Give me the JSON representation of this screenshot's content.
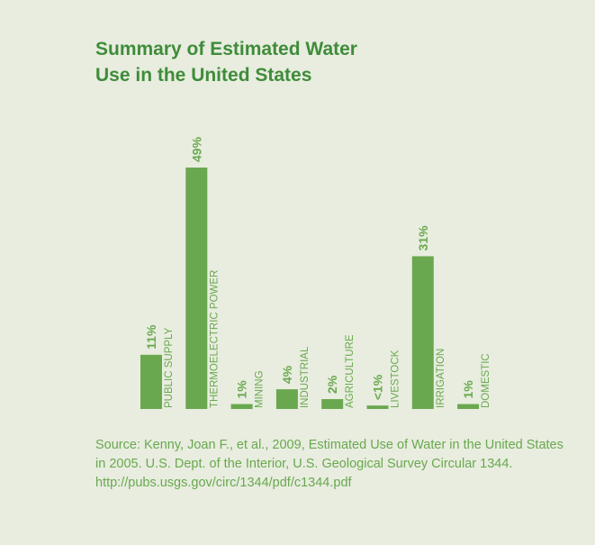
{
  "chart_data": {
    "type": "bar",
    "title": "Summary of Estimated Water Use in the United States",
    "categories": [
      "PUBLIC SUPPLY",
      "THERMOELECTRIC POWER",
      "MINING",
      "INDUSTRIAL",
      "AGRICULTURE",
      "LIVESTOCK",
      "IRRIGATION",
      "DOMESTIC"
    ],
    "values": [
      11,
      49,
      1,
      4,
      2,
      0.7,
      31,
      1
    ],
    "value_labels": [
      "11%",
      "49%",
      "1%",
      "4%",
      "2%",
      "<1%",
      "31%",
      "1%"
    ],
    "color": "#6aa84f",
    "source": "Source: Kenny, Joan F., et al., 2009, Estimated Use of Water in the United States in 2005. U.S. Dept. of the Interior, U.S. Geological Survey Circular 1344. http://pubs.usgs.gov/circ/1344/pdf/c1344.pdf"
  }
}
